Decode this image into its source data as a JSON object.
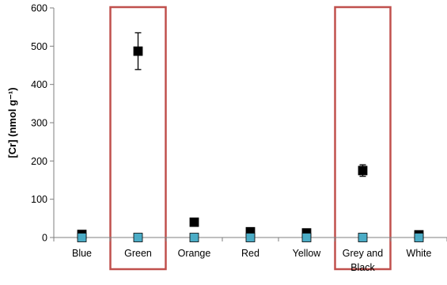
{
  "chart_data": {
    "type": "scatter",
    "categories": [
      "Blue",
      "Green",
      "Orange",
      "Red",
      "Yellow",
      "Grey and Black",
      "White"
    ],
    "category_label_lines": [
      [
        "Blue"
      ],
      [
        "Green"
      ],
      [
        "Orange"
      ],
      [
        "Red"
      ],
      [
        "Yellow"
      ],
      [
        "Grey and",
        "Black"
      ],
      [
        "White"
      ]
    ],
    "ylabel": "[Cr] (nmol g⁻¹)",
    "ylim": [
      0,
      600
    ],
    "yticks": [
      0,
      100,
      200,
      300,
      400,
      500,
      600
    ],
    "grid": false,
    "series": [
      {
        "marker": "square",
        "color": "#000000",
        "values": [
          8,
          487,
          40,
          15,
          12,
          175,
          7
        ],
        "error": [
          null,
          48,
          null,
          null,
          null,
          15,
          null
        ]
      },
      {
        "marker": "square",
        "color": "#4bacc6",
        "values": [
          0,
          0,
          0,
          0,
          0,
          0,
          0
        ],
        "error": [
          null,
          null,
          null,
          null,
          null,
          null,
          null
        ]
      }
    ],
    "highlighted_categories": [
      "Green",
      "Grey and Black"
    ],
    "highlight_color": "#c0504d"
  }
}
